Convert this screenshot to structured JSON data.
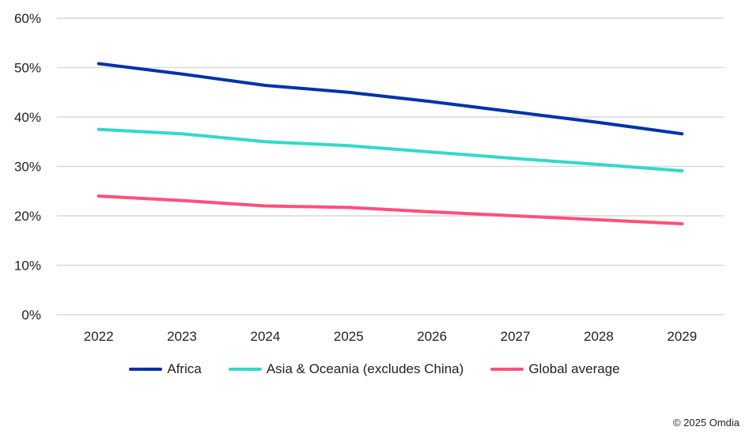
{
  "chart_data": {
    "type": "line",
    "title": "",
    "xlabel": "",
    "ylabel": "",
    "categories": [
      "2022",
      "2023",
      "2024",
      "2025",
      "2026",
      "2027",
      "2028",
      "2029"
    ],
    "ylim": [
      0,
      60
    ],
    "yticks": [
      "0%",
      "10%",
      "20%",
      "30%",
      "40%",
      "50%",
      "60%"
    ],
    "ytick_values": [
      0,
      10,
      20,
      30,
      40,
      50,
      60
    ],
    "grid": true,
    "legend_placement": "bottom",
    "series": [
      {
        "name": "Africa",
        "color": "#0033a8",
        "values": [
          50.8,
          48.7,
          46.4,
          45.0,
          43.1,
          41.0,
          38.9,
          36.6
        ]
      },
      {
        "name": "Asia & Oceania (excludes China)",
        "color": "#33d9c8",
        "values": [
          37.5,
          36.6,
          35.0,
          34.2,
          32.9,
          31.6,
          30.4,
          29.1
        ]
      },
      {
        "name": "Global average",
        "color": "#ff4f7b",
        "values": [
          24.0,
          23.1,
          22.0,
          21.7,
          20.8,
          20.0,
          19.2,
          18.4
        ]
      }
    ]
  },
  "footer": {
    "copyright": "© 2025 Omdia"
  }
}
